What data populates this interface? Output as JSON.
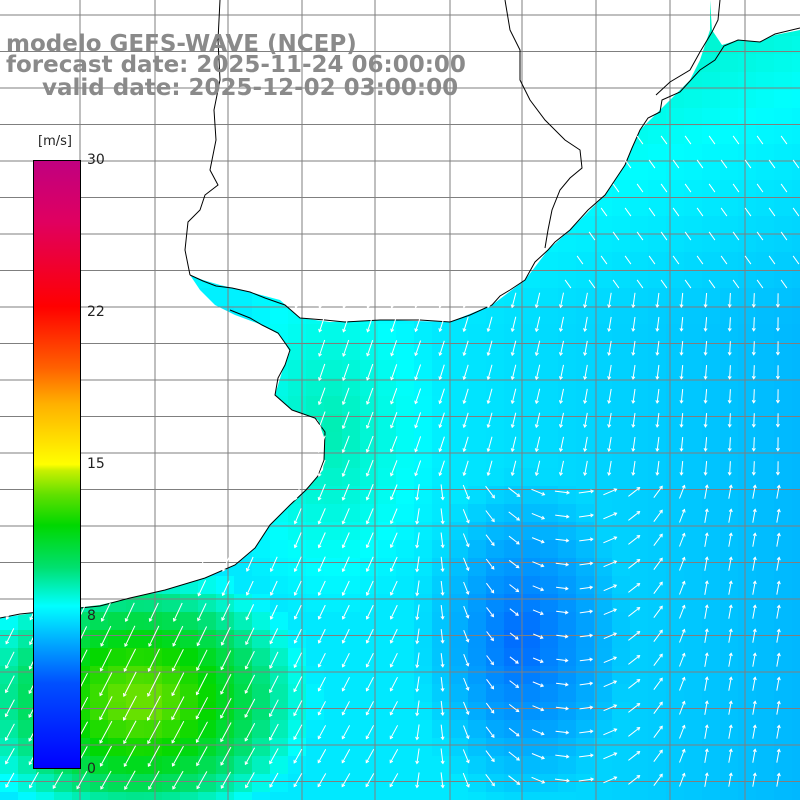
{
  "title": {
    "line1": "modelo GEFS-WAVE (NCEP)",
    "line2": "forecast date: 2025-11-24 06:00:00",
    "line3": "valid date: 2025-12-02 03:00:00"
  },
  "colorbar": {
    "unit": "[m/s]",
    "min": 0,
    "max": 30,
    "ticks": [
      "30",
      "22",
      "15",
      "8",
      "0"
    ],
    "colors": [
      "#0000ff",
      "#0050ff",
      "#00a0ff",
      "#00ffff",
      "#00e070",
      "#00d800",
      "#60e000",
      "#c8f000",
      "#ffff00",
      "#ffb000",
      "#ff6000",
      "#ff0000",
      "#e00060",
      "#c00080"
    ]
  },
  "map": {
    "variable": "wind speed and direction",
    "grid": true,
    "land_color": "#ffffff",
    "coastline_color": "#000000",
    "grid_color": "#7f7f7f",
    "vector_color": "#ffffff"
  }
}
